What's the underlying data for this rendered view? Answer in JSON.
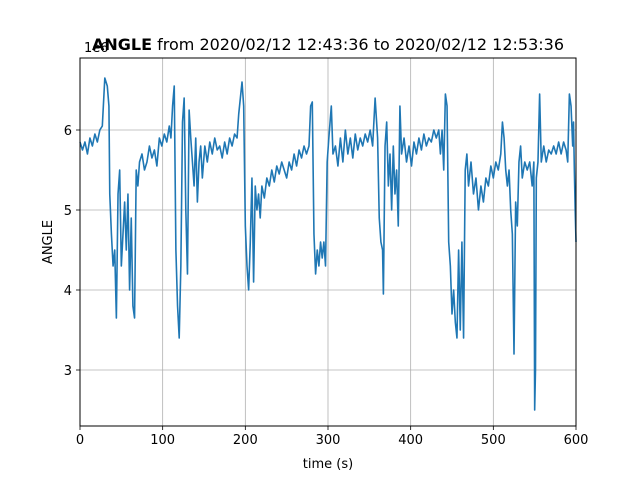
{
  "chart_data": {
    "type": "line",
    "title_bold": "ANGLE",
    "title_rest": " from 2020/02/12 12:43:36 to 2020/02/12 12:53:36",
    "xlabel": "time (s)",
    "ylabel": "ANGLE",
    "y_offset_label": "1e6",
    "xlim": [
      0,
      600
    ],
    "ylim": [
      2300000,
      6900000
    ],
    "xticks": [
      0,
      100,
      200,
      300,
      400,
      500,
      600
    ],
    "yticks": [
      3000000,
      4000000,
      5000000,
      6000000
    ],
    "xtick_labels": [
      "0",
      "100",
      "200",
      "300",
      "400",
      "500",
      "600"
    ],
    "ytick_labels": [
      "3",
      "4",
      "5",
      "6"
    ],
    "grid": true,
    "series": [
      {
        "color": "#1f77b4",
        "points": [
          [
            0,
            5850000.0
          ],
          [
            3,
            5750000.0
          ],
          [
            6,
            5850000.0
          ],
          [
            9,
            5700000.0
          ],
          [
            12,
            5900000.0
          ],
          [
            15,
            5800000.0
          ],
          [
            18,
            5950000.0
          ],
          [
            21,
            5850000.0
          ],
          [
            24,
            6000000.0
          ],
          [
            27,
            6050000.0
          ],
          [
            30,
            6650000.0
          ],
          [
            33,
            6550000.0
          ],
          [
            35,
            6300000.0
          ],
          [
            36,
            5200000.0
          ],
          [
            38,
            4700000.0
          ],
          [
            40,
            4300000.0
          ],
          [
            42,
            4500000.0
          ],
          [
            44,
            3650000.0
          ],
          [
            46,
            5200000.0
          ],
          [
            48,
            5500000.0
          ],
          [
            50,
            4300000.0
          ],
          [
            52,
            4700000.0
          ],
          [
            54,
            5100000.0
          ],
          [
            56,
            4500000.0
          ],
          [
            58,
            5200000.0
          ],
          [
            60,
            4000000.0
          ],
          [
            62,
            4900000.0
          ],
          [
            64,
            3800000.0
          ],
          [
            66,
            3650000.0
          ],
          [
            68,
            5500000.0
          ],
          [
            70,
            5300000.0
          ],
          [
            72,
            5600000.0
          ],
          [
            75,
            5700000.0
          ],
          [
            78,
            5500000.0
          ],
          [
            81,
            5600000.0
          ],
          [
            84,
            5800000.0
          ],
          [
            87,
            5650000.0
          ],
          [
            90,
            5750000.0
          ],
          [
            93,
            5550000.0
          ],
          [
            96,
            5900000.0
          ],
          [
            99,
            5800000.0
          ],
          [
            102,
            5950000.0
          ],
          [
            105,
            5850000.0
          ],
          [
            108,
            6050000.0
          ],
          [
            110,
            5900000.0
          ],
          [
            112,
            6300000.0
          ],
          [
            114,
            6550000.0
          ],
          [
            116,
            4500000.0
          ],
          [
            118,
            3800000.0
          ],
          [
            120,
            3400000.0
          ],
          [
            122,
            4300000.0
          ],
          [
            124,
            6100000.0
          ],
          [
            126,
            6400000.0
          ],
          [
            128,
            5000000.0
          ],
          [
            130,
            4200000.0
          ],
          [
            132,
            6250000.0
          ],
          [
            134,
            5900000.0
          ],
          [
            136,
            5600000.0
          ],
          [
            138,
            5300000.0
          ],
          [
            140,
            5900000.0
          ],
          [
            142,
            5100000.0
          ],
          [
            144,
            5600000.0
          ],
          [
            146,
            5800000.0
          ],
          [
            148,
            5400000.0
          ],
          [
            151,
            5800000.0
          ],
          [
            154,
            5600000.0
          ],
          [
            157,
            5850000.0
          ],
          [
            160,
            5700000.0
          ],
          [
            163,
            5900000.0
          ],
          [
            166,
            5750000.0
          ],
          [
            169,
            5800000.0
          ],
          [
            172,
            5650000.0
          ],
          [
            175,
            5850000.0
          ],
          [
            178,
            5700000.0
          ],
          [
            181,
            5900000.0
          ],
          [
            184,
            5800000.0
          ],
          [
            187,
            5950000.0
          ],
          [
            190,
            5900000.0
          ],
          [
            192,
            6200000.0
          ],
          [
            194,
            6400000.0
          ],
          [
            196,
            6600000.0
          ],
          [
            198,
            6300000.0
          ],
          [
            200,
            4800000.0
          ],
          [
            202,
            4300000.0
          ],
          [
            204,
            4000000.0
          ],
          [
            206,
            4600000.0
          ],
          [
            208,
            5400000.0
          ],
          [
            210,
            4100000.0
          ],
          [
            212,
            5300000.0
          ],
          [
            214,
            5000000.0
          ],
          [
            216,
            5200000.0
          ],
          [
            218,
            4900000.0
          ],
          [
            220,
            5300000.0
          ],
          [
            223,
            5150000.0
          ],
          [
            226,
            5400000.0
          ],
          [
            229,
            5300000.0
          ],
          [
            232,
            5500000.0
          ],
          [
            235,
            5350000.0
          ],
          [
            238,
            5550000.0
          ],
          [
            241,
            5450000.0
          ],
          [
            244,
            5600000.0
          ],
          [
            247,
            5500000.0
          ],
          [
            250,
            5400000.0
          ],
          [
            253,
            5600000.0
          ],
          [
            256,
            5500000.0
          ],
          [
            259,
            5700000.0
          ],
          [
            262,
            5550000.0
          ],
          [
            265,
            5750000.0
          ],
          [
            268,
            5650000.0
          ],
          [
            271,
            5800000.0
          ],
          [
            274,
            5700000.0
          ],
          [
            277,
            5800000.0
          ],
          [
            279,
            6300000.0
          ],
          [
            281,
            6350000.0
          ],
          [
            283,
            4700000.0
          ],
          [
            285,
            4200000.0
          ],
          [
            287,
            4500000.0
          ],
          [
            289,
            4300000.0
          ],
          [
            291,
            4600000.0
          ],
          [
            293,
            4400000.0
          ],
          [
            295,
            4600000.0
          ],
          [
            297,
            4300000.0
          ],
          [
            299,
            5600000.0
          ],
          [
            301,
            5900000.0
          ],
          [
            304,
            6300000.0
          ],
          [
            306,
            5700000.0
          ],
          [
            309,
            5800000.0
          ],
          [
            312,
            5550000.0
          ],
          [
            315,
            5900000.0
          ],
          [
            318,
            5600000.0
          ],
          [
            321,
            6000000.0
          ],
          [
            324,
            5700000.0
          ],
          [
            327,
            5900000.0
          ],
          [
            330,
            5650000.0
          ],
          [
            333,
            5950000.0
          ],
          [
            336,
            5750000.0
          ],
          [
            339,
            5900000.0
          ],
          [
            342,
            5800000.0
          ],
          [
            345,
            5950000.0
          ],
          [
            348,
            5850000.0
          ],
          [
            351,
            6000000.0
          ],
          [
            354,
            5800000.0
          ],
          [
            357,
            6400000.0
          ],
          [
            360,
            5900000.0
          ],
          [
            362,
            4900000.0
          ],
          [
            364,
            4600000.0
          ],
          [
            366,
            4500000.0
          ],
          [
            367,
            3950000.0
          ],
          [
            369,
            5800000.0
          ],
          [
            371,
            6100000.0
          ],
          [
            373,
            5300000.0
          ],
          [
            375,
            5700000.0
          ],
          [
            377,
            5000000.0
          ],
          [
            379,
            5800000.0
          ],
          [
            381,
            5200000.0
          ],
          [
            383,
            5500000.0
          ],
          [
            385,
            4800000.0
          ],
          [
            387,
            6300000.0
          ],
          [
            389,
            5700000.0
          ],
          [
            392,
            5900000.0
          ],
          [
            395,
            5600000.0
          ],
          [
            398,
            5800000.0
          ],
          [
            401,
            5550000.0
          ],
          [
            404,
            5850000.0
          ],
          [
            407,
            5700000.0
          ],
          [
            410,
            5900000.0
          ],
          [
            413,
            5750000.0
          ],
          [
            416,
            5950000.0
          ],
          [
            419,
            5800000.0
          ],
          [
            422,
            5900000.0
          ],
          [
            425,
            5850000.0
          ],
          [
            428,
            6000000.0
          ],
          [
            431,
            5900000.0
          ],
          [
            434,
            6000000.0
          ],
          [
            436,
            5700000.0
          ],
          [
            438,
            6000000.0
          ],
          [
            440,
            5500000.0
          ],
          [
            442,
            6450000.0
          ],
          [
            444,
            6300000.0
          ],
          [
            446,
            4600000.0
          ],
          [
            448,
            4300000.0
          ],
          [
            450,
            3700000.0
          ],
          [
            452,
            4000000.0
          ],
          [
            454,
            3600000.0
          ],
          [
            456,
            3400000.0
          ],
          [
            458,
            4500000.0
          ],
          [
            460,
            3500000.0
          ],
          [
            462,
            4600000.0
          ],
          [
            464,
            3400000.0
          ],
          [
            466,
            5500000.0
          ],
          [
            468,
            5700000.0
          ],
          [
            470,
            5300000.0
          ],
          [
            473,
            5600000.0
          ],
          [
            476,
            5200000.0
          ],
          [
            479,
            5400000.0
          ],
          [
            482,
            5000000.0
          ],
          [
            485,
            5300000.0
          ],
          [
            488,
            5100000.0
          ],
          [
            491,
            5400000.0
          ],
          [
            494,
            5300000.0
          ],
          [
            497,
            5550000.0
          ],
          [
            500,
            5400000.0
          ],
          [
            503,
            5600000.0
          ],
          [
            506,
            5500000.0
          ],
          [
            509,
            5700000.0
          ],
          [
            511,
            6100000.0
          ],
          [
            513,
            5900000.0
          ],
          [
            515,
            5500000.0
          ],
          [
            517,
            5300000.0
          ],
          [
            519,
            5500000.0
          ],
          [
            521,
            5000000.0
          ],
          [
            523,
            4700000.0
          ],
          [
            525,
            3200000.0
          ],
          [
            527,
            5100000.0
          ],
          [
            529,
            4800000.0
          ],
          [
            531,
            5600000.0
          ],
          [
            533,
            5800000.0
          ],
          [
            535,
            5400000.0
          ],
          [
            538,
            5600000.0
          ],
          [
            541,
            5500000.0
          ],
          [
            544,
            5600000.0
          ],
          [
            547,
            5300000.0
          ],
          [
            549,
            5600000.0
          ],
          [
            550,
            2500000.0
          ],
          [
            551,
            3000000.0
          ],
          [
            552,
            5400000.0
          ],
          [
            554,
            5600000.0
          ],
          [
            556,
            6450000.0
          ],
          [
            558,
            5600000.0
          ],
          [
            561,
            5800000.0
          ],
          [
            564,
            5600000.0
          ],
          [
            567,
            5750000.0
          ],
          [
            570,
            5700000.0
          ],
          [
            573,
            5800000.0
          ],
          [
            576,
            5700000.0
          ],
          [
            579,
            5850000.0
          ],
          [
            582,
            5700000.0
          ],
          [
            585,
            5850000.0
          ],
          [
            588,
            5750000.0
          ],
          [
            590,
            5600000.0
          ],
          [
            592,
            6450000.0
          ],
          [
            594,
            6300000.0
          ],
          [
            596,
            5800000.0
          ],
          [
            597,
            6100000.0
          ],
          [
            598,
            5500000.0
          ],
          [
            599,
            5000000.0
          ],
          [
            600,
            4600000.0
          ]
        ]
      }
    ]
  }
}
